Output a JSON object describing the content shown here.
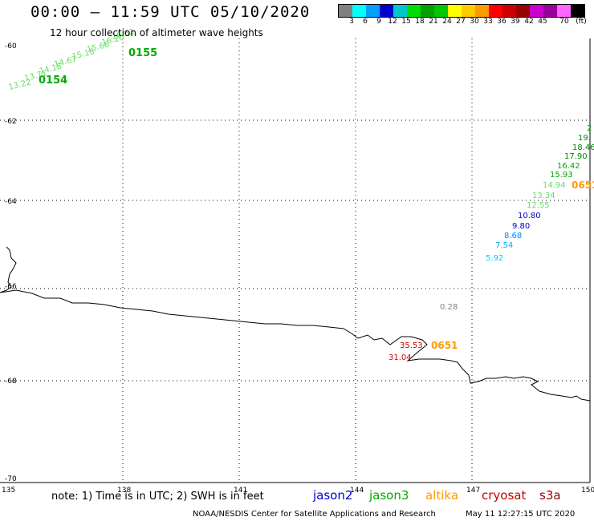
{
  "header": {
    "title": "00:00 – 11:59 UTC 05/10/2020",
    "subtitle": "12 hour collection of altimeter wave heights"
  },
  "legend": {
    "unit": "(ft)",
    "colors": [
      "#808080",
      "#00ffff",
      "#00a0ff",
      "#0000cc",
      "#00c8c8",
      "#00dd00",
      "#00a000",
      "#00c800",
      "#ffff00",
      "#ffcc00",
      "#ff9900",
      "#ff0000",
      "#cc0000",
      "#990000",
      "#cc00cc",
      "#990099",
      "#ff66ff",
      "#000000"
    ],
    "labels": [
      "3",
      "6",
      "9",
      "12",
      "15",
      "18",
      "21",
      "24",
      "27",
      "30",
      "33",
      "36",
      "39",
      "42",
      "45",
      "70"
    ]
  },
  "axes": {
    "lat_labels": [
      "-60",
      "-62",
      "-64",
      "-66",
      "-68",
      "-70"
    ],
    "lon_labels": [
      "135",
      "138",
      "141",
      "144",
      "147",
      "150"
    ]
  },
  "tracks": [
    {
      "satellite": "jason3",
      "pass": "0155",
      "color": "#00aa00",
      "times": [
        "0155",
        "0154"
      ],
      "values": [
        "13.22",
        "13.71",
        "14.18",
        "14.67",
        "15.18",
        "15.66",
        "16.20",
        "16.62"
      ]
    },
    {
      "satellite": "jason3",
      "pass": "0651",
      "times": [
        "0651"
      ],
      "values": [
        {
          "v": "5.92",
          "color": "#00ccff"
        },
        {
          "v": "7.54",
          "color": "#00aaff"
        },
        {
          "v": "8.68",
          "color": "#0088ff"
        },
        {
          "v": "9.80",
          "color": "#0000cc"
        },
        {
          "v": "10.80",
          "color": "#0000cc"
        },
        {
          "v": "12.55",
          "color": "#66dd66"
        },
        {
          "v": "13.34",
          "color": "#66dd66"
        },
        {
          "v": "14.94",
          "color": "#66dd66"
        },
        {
          "v": "15.93",
          "color": "#00aa00"
        },
        {
          "v": "16.42",
          "color": "#00aa00"
        },
        {
          "v": "17.90",
          "color": "#008800"
        },
        {
          "v": "18.46",
          "color": "#008800"
        },
        {
          "v": "19.",
          "color": "#008800"
        },
        {
          "v": "2",
          "color": "#00aa00"
        }
      ]
    },
    {
      "satellite": "altika",
      "pass": "0651",
      "values": [
        {
          "v": "0.28",
          "color": "#808080"
        },
        {
          "v": "35.53",
          "color": "#cc0000"
        },
        {
          "v": "31.04",
          "color": "#cc0000"
        }
      ]
    }
  ],
  "footer": {
    "note": "note: 1) Time is in UTC; 2) SWH is in feet",
    "satellites": [
      {
        "name": "jason2",
        "color": "#0000cc"
      },
      {
        "name": "jason3",
        "color": "#00aa00"
      },
      {
        "name": "altika",
        "color": "#ff9900"
      },
      {
        "name": "cryosat",
        "color": "#cc0000"
      },
      {
        "name": "s3a",
        "color": "#990000"
      }
    ],
    "credit": "NOAA/NESDIS Center for Satellite Applications and Research",
    "timestamp": "May 11 12:27:15 UTC 2020"
  }
}
